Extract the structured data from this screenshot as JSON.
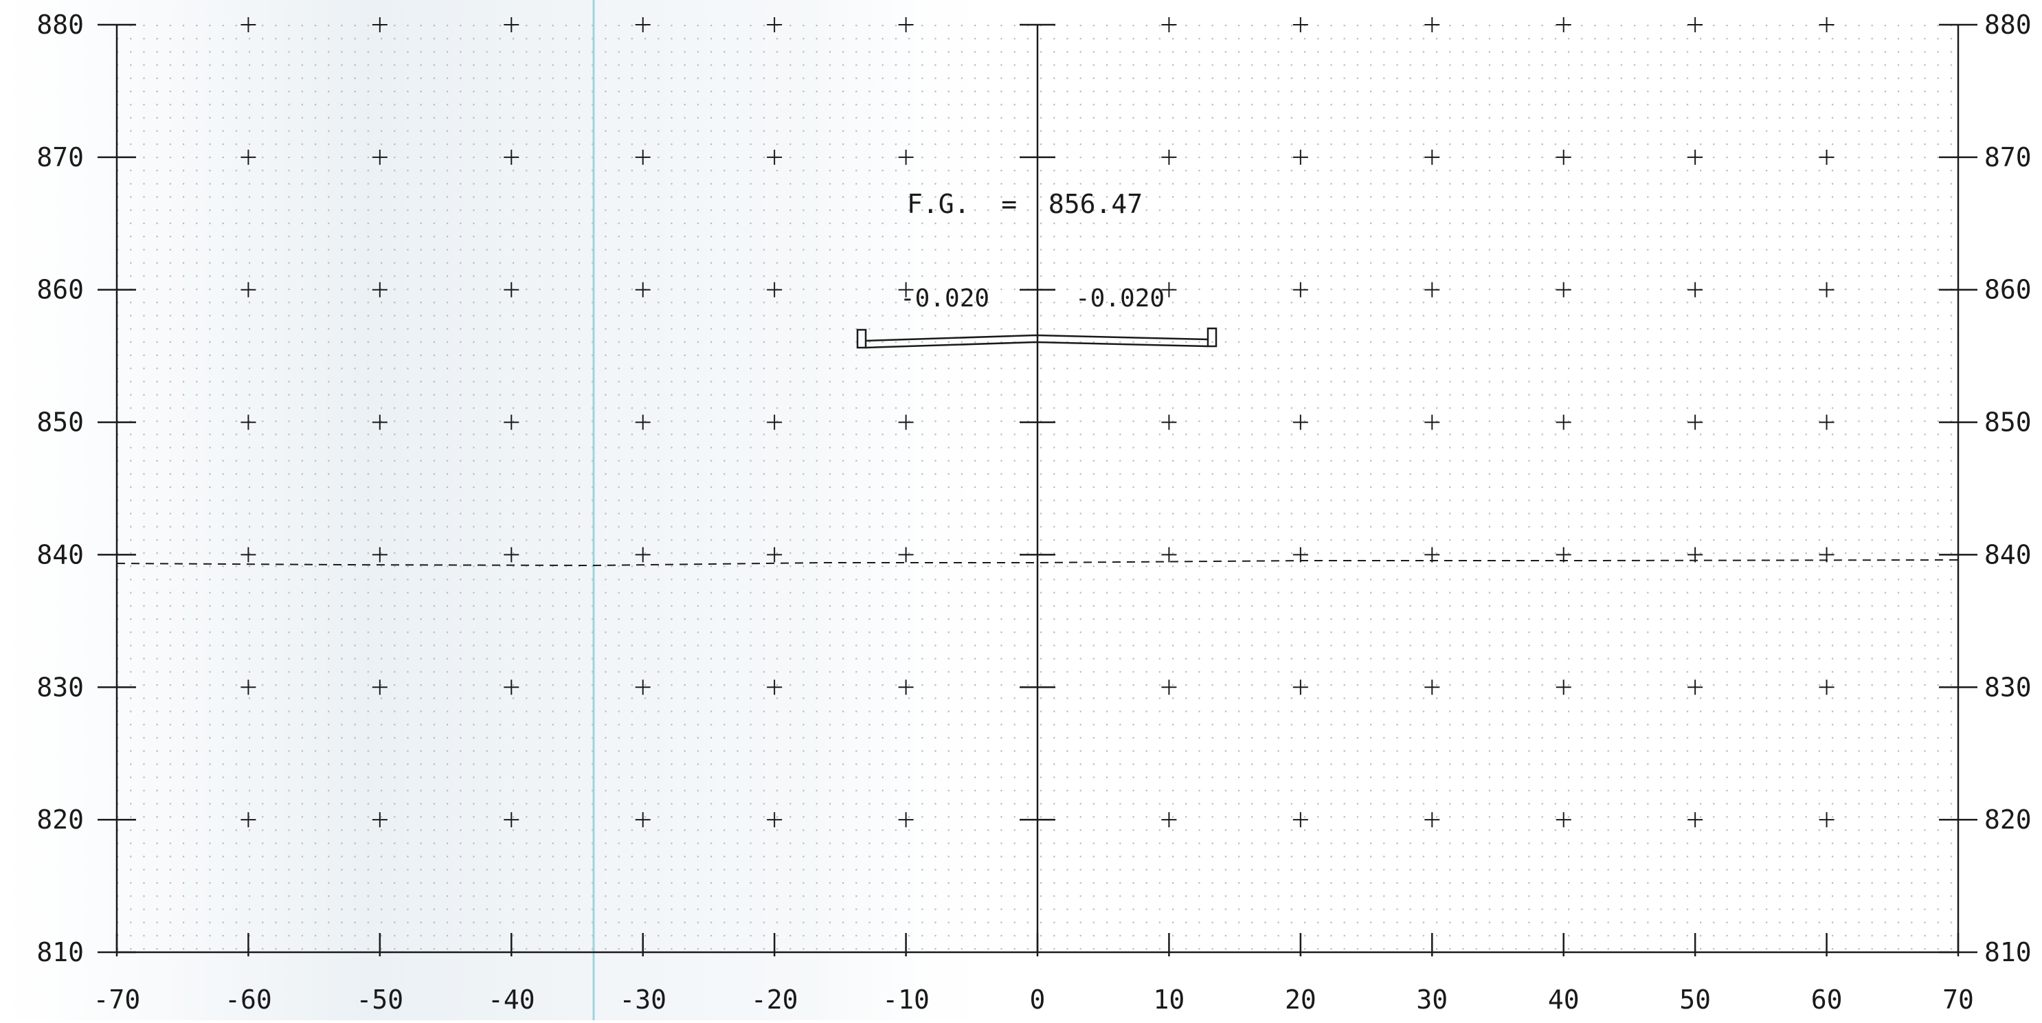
{
  "drawing": {
    "label_fg": "F.G.  =  856.47",
    "slope_left": "-0.020",
    "slope_right": "-0.020"
  },
  "axes": {
    "x_ticks": [
      "-70",
      "-60",
      "-50",
      "-40",
      "-30",
      "-20",
      "-10",
      "0",
      "10",
      "20",
      "30",
      "40",
      "50",
      "60",
      "70"
    ],
    "y_ticks": [
      "880",
      "870",
      "860",
      "850",
      "840",
      "830",
      "820",
      "810"
    ]
  },
  "colors": {
    "ink": "#1a1a1a",
    "guide_line": "#9fd4dc",
    "dot_grid": "#b8b8b8"
  }
}
